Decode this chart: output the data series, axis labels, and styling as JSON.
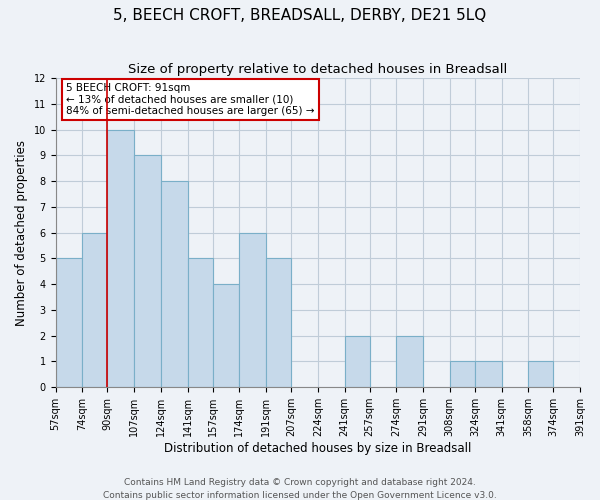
{
  "title": "5, BEECH CROFT, BREADSALL, DERBY, DE21 5LQ",
  "subtitle": "Size of property relative to detached houses in Breadsall",
  "xlabel": "Distribution of detached houses by size in Breadsall",
  "ylabel": "Number of detached properties",
  "bin_edges": [
    57,
    74,
    90,
    107,
    124,
    141,
    157,
    174,
    191,
    207,
    224,
    241,
    257,
    274,
    291,
    308,
    324,
    341,
    358,
    374,
    391
  ],
  "counts": [
    5,
    6,
    10,
    9,
    8,
    5,
    4,
    6,
    5,
    0,
    0,
    2,
    0,
    2,
    0,
    1,
    1,
    0,
    1,
    0
  ],
  "bar_color": "#c6d9ea",
  "bar_edgecolor": "#7aafc8",
  "property_line_x": 90,
  "property_line_color": "#cc0000",
  "ylim": [
    0,
    12
  ],
  "yticks": [
    0,
    1,
    2,
    3,
    4,
    5,
    6,
    7,
    8,
    9,
    10,
    11,
    12
  ],
  "annotation_text": "5 BEECH CROFT: 91sqm\n← 13% of detached houses are smaller (10)\n84% of semi-detached houses are larger (65) →",
  "annotation_box_edgecolor": "#cc0000",
  "footer_line1": "Contains HM Land Registry data © Crown copyright and database right 2024.",
  "footer_line2": "Contains public sector information licensed under the Open Government Licence v3.0.",
  "background_color": "#eef2f7",
  "title_fontsize": 11,
  "subtitle_fontsize": 9.5,
  "xlabel_fontsize": 8.5,
  "ylabel_fontsize": 8.5,
  "tick_fontsize": 7,
  "footer_fontsize": 6.5
}
